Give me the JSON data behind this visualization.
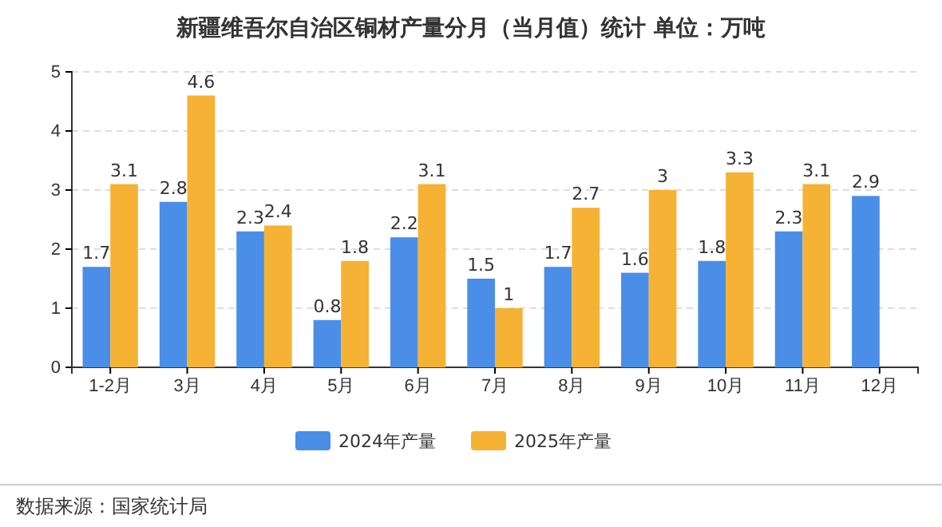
{
  "chart_data": {
    "type": "bar",
    "title": "新疆维吾尔自治区铜材产量分月（当月值）统计  单位：万吨",
    "categories": [
      "1-2月",
      "3月",
      "4月",
      "5月",
      "6月",
      "7月",
      "8月",
      "9月",
      "10月",
      "11月",
      "12月"
    ],
    "series": [
      {
        "name": "2024年产量",
        "color": "#4a8ee8",
        "values": [
          1.7,
          2.8,
          2.3,
          0.8,
          2.2,
          1.5,
          1.7,
          1.6,
          1.8,
          2.3,
          2.9
        ]
      },
      {
        "name": "2025年产量",
        "color": "#f6b234",
        "values": [
          3.1,
          4.6,
          2.4,
          1.8,
          3.1,
          1,
          2.7,
          3,
          3.3,
          3.1,
          null
        ]
      }
    ],
    "ylim": [
      0,
      5
    ],
    "yticks": [
      0,
      1,
      2,
      3,
      4,
      5
    ],
    "grid": "y",
    "legend": "bottom",
    "data_labels": true,
    "annotations": [
      "数据来源：国家统计局"
    ]
  }
}
